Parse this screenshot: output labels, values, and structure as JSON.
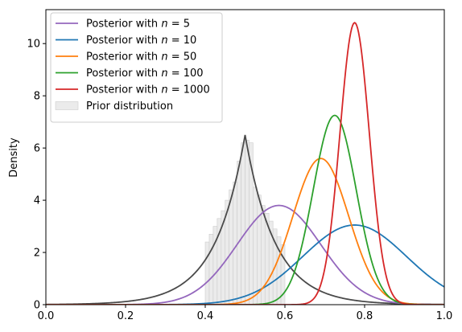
{
  "chart_data": {
    "type": "line",
    "title": "",
    "xlabel": "",
    "ylabel": "Density",
    "xlim": [
      0,
      1
    ],
    "ylim": [
      0,
      11.3
    ],
    "xticks": [
      "0.0",
      "0.2",
      "0.4",
      "0.6",
      "0.8",
      "1.0"
    ],
    "xtick_values": [
      0,
      0.2,
      0.4,
      0.6,
      0.8,
      1.0
    ],
    "yticks": [
      "0",
      "2",
      "4",
      "6",
      "8",
      "10"
    ],
    "ytick_values": [
      0,
      2,
      4,
      6,
      8,
      10
    ],
    "grid": false,
    "legend_position": "top-left",
    "series": [
      {
        "name": "Posterior with n = 5",
        "legend_prefix": "Posterior with ",
        "legend_var": "n",
        "legend_rest": " = 5",
        "color": "#9467bd",
        "shape": "gaussian",
        "peak_x": 0.585,
        "peak_y": 3.8,
        "sigma": 0.105
      },
      {
        "name": "Posterior with n = 10",
        "legend_prefix": "Posterior with ",
        "legend_var": "n",
        "legend_rest": " = 10",
        "color": "#1f77b4",
        "shape": "gaussian",
        "peak_x": 0.775,
        "peak_y": 3.05,
        "sigma": 0.13
      },
      {
        "name": "Posterior with n = 50",
        "legend_prefix": "Posterior with ",
        "legend_var": "n",
        "legend_rest": " = 50",
        "color": "#ff7f0e",
        "shape": "gaussian",
        "peak_x": 0.69,
        "peak_y": 5.6,
        "sigma": 0.07
      },
      {
        "name": "Posterior with n = 100",
        "legend_prefix": "Posterior with ",
        "legend_var": "n",
        "legend_rest": " = 100",
        "color": "#2ca02c",
        "shape": "gaussian",
        "peak_x": 0.725,
        "peak_y": 7.25,
        "sigma": 0.054
      },
      {
        "name": "Posterior with n = 1000",
        "legend_prefix": "Posterior with ",
        "legend_var": "n",
        "legend_rest": " = 1000",
        "color": "#d62728",
        "shape": "gaussian",
        "peak_x": 0.775,
        "peak_y": 10.8,
        "sigma": 0.037
      }
    ],
    "prior_curve": {
      "color": "#4a4a4a",
      "shape": "laplace",
      "peak_x": 0.5,
      "peak_y": 6.5,
      "scale": 0.075
    },
    "prior_histogram": {
      "name": "Prior distribution",
      "fill": "#ebebeb",
      "edge": "#cccccc",
      "bins": [
        {
          "x0": 0.4,
          "x1": 0.41,
          "y": 2.4
        },
        {
          "x0": 0.41,
          "x1": 0.42,
          "y": 2.7
        },
        {
          "x0": 0.42,
          "x1": 0.43,
          "y": 3.0
        },
        {
          "x0": 0.43,
          "x1": 0.44,
          "y": 3.3
        },
        {
          "x0": 0.44,
          "x1": 0.45,
          "y": 3.6
        },
        {
          "x0": 0.45,
          "x1": 0.46,
          "y": 4.0
        },
        {
          "x0": 0.46,
          "x1": 0.47,
          "y": 4.4
        },
        {
          "x0": 0.47,
          "x1": 0.48,
          "y": 4.7
        },
        {
          "x0": 0.48,
          "x1": 0.49,
          "y": 5.5
        },
        {
          "x0": 0.49,
          "x1": 0.5,
          "y": 6.2
        },
        {
          "x0": 0.5,
          "x1": 0.51,
          "y": 6.3
        },
        {
          "x0": 0.51,
          "x1": 0.52,
          "y": 6.2
        },
        {
          "x0": 0.52,
          "x1": 0.53,
          "y": 4.5
        },
        {
          "x0": 0.53,
          "x1": 0.54,
          "y": 4.2
        },
        {
          "x0": 0.54,
          "x1": 0.55,
          "y": 3.8
        },
        {
          "x0": 0.55,
          "x1": 0.56,
          "y": 3.5
        },
        {
          "x0": 0.56,
          "x1": 0.57,
          "y": 3.2
        },
        {
          "x0": 0.57,
          "x1": 0.58,
          "y": 2.9
        },
        {
          "x0": 0.58,
          "x1": 0.59,
          "y": 2.6
        },
        {
          "x0": 0.59,
          "x1": 0.6,
          "y": 2.3
        }
      ]
    }
  }
}
